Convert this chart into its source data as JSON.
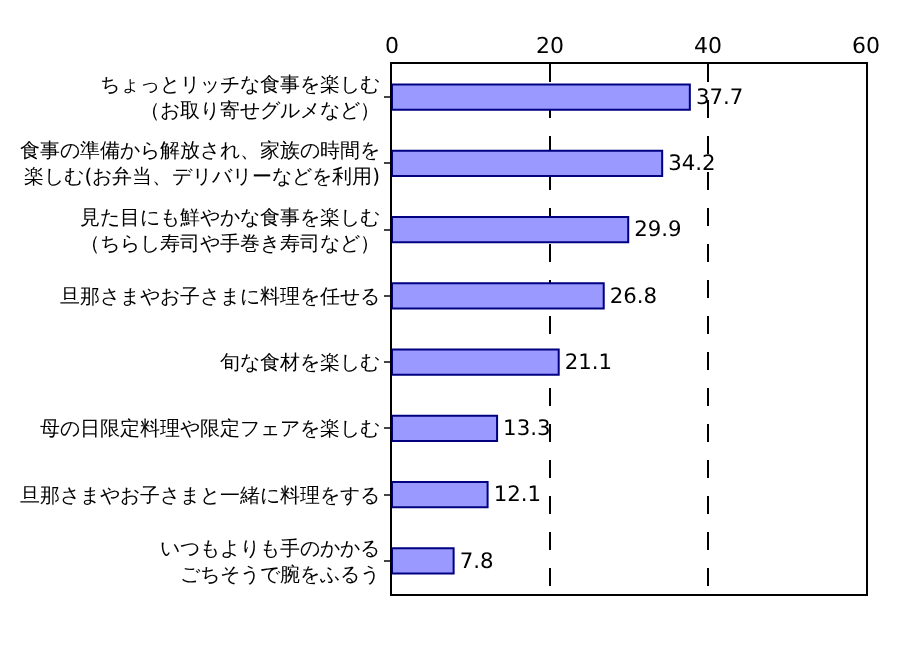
{
  "chart_data": {
    "type": "bar",
    "orientation": "horizontal",
    "categories": [
      "ちょっとリッチな食事を楽しむ（お取り寄せグルメなど）",
      "食事の準備から解放され、家族の時間を楽しむ(お弁当、デリバリーなどを利用)",
      "見た目にも鮮やかな食事を楽しむ（ちらし寿司や手巻き寿司など）",
      "旦那さまやお子さまに料理を任せる",
      "旬な食材を楽しむ",
      "母の日限定料理や限定フェアを楽しむ",
      "旦那さまやお子さまと一緒に料理をする",
      "いつもよりも手のかかるごちそうで腕をふるう"
    ],
    "values": [
      37.7,
      34.2,
      29.9,
      26.8,
      21.1,
      13.3,
      12.1,
      7.8
    ],
    "color": "#9999ff",
    "xlim": [
      0,
      60
    ],
    "xticks": [
      0,
      20,
      40,
      60
    ],
    "grid": "x",
    "data_labels": true
  }
}
